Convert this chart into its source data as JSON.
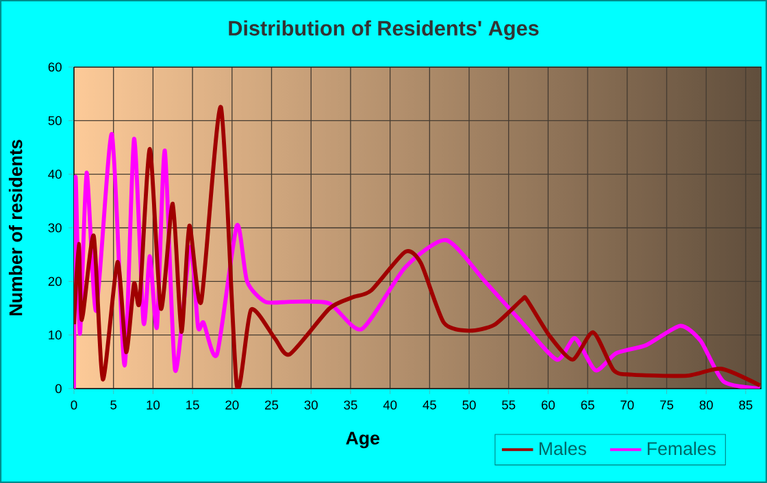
{
  "chart_data": {
    "type": "line",
    "title": "Distribution of Residents' Ages",
    "xlabel": "Age",
    "ylabel": "Number of residents",
    "xlim": [
      0,
      87
    ],
    "ylim": [
      0,
      60
    ],
    "xticks": [
      0,
      5,
      10,
      15,
      20,
      25,
      30,
      35,
      40,
      45,
      50,
      55,
      60,
      65,
      70,
      75,
      80,
      85
    ],
    "yticks": [
      0,
      10,
      20,
      30,
      40,
      50,
      60
    ],
    "grid": true,
    "legend": "bottom right",
    "marker": "none",
    "line_style": "solid",
    "series": [
      {
        "name": "Males",
        "color": "#a00000",
        "x": [
          0,
          0.6,
          1.0,
          2.5,
          3.65,
          5.5,
          6.6,
          7.6,
          8.3,
          9.6,
          11.0,
          12.5,
          13.6,
          14.6,
          16.1,
          18.6,
          20.6,
          22.4,
          25.4,
          27.3,
          32.3,
          35.2,
          37.6,
          41.9,
          43.9,
          46.8,
          50.0,
          53.2,
          56.7,
          57.3,
          60.2,
          63.1,
          65.7,
          68.3,
          70.6,
          77.6,
          81.9,
          86.8
        ],
        "values": [
          12,
          27,
          12.8,
          28.5,
          1.7,
          23.6,
          6.8,
          19.6,
          16.2,
          44.7,
          14.9,
          34.5,
          10.6,
          30.4,
          16.2,
          52.5,
          0.6,
          14.7,
          9.4,
          6.4,
          14.9,
          17,
          18.3,
          25.5,
          23.4,
          12.3,
          10.8,
          11.9,
          16.6,
          16.6,
          9.8,
          5.4,
          10.5,
          3.4,
          2.6,
          2.4,
          3.7,
          0.6
        ]
      },
      {
        "name": "Females",
        "color": "#ff00ff",
        "x": [
          0,
          0.2,
          0.75,
          1.6,
          2.8,
          4.8,
          6.4,
          7.6,
          8.8,
          9.6,
          10.5,
          11.5,
          12.8,
          14.7,
          15.7,
          16.4,
          18.1,
          20.6,
          21.9,
          24.2,
          27.5,
          32.3,
          36.4,
          41.9,
          47.1,
          52.0,
          56.7,
          61.1,
          63.4,
          66.0,
          68.6,
          72.4,
          76.7,
          79.3,
          82.2,
          86.8
        ],
        "values": [
          0,
          39.5,
          10.2,
          40.3,
          14.5,
          47.5,
          4.3,
          46.6,
          12.3,
          24.7,
          11.5,
          44.4,
          3.4,
          26.4,
          11.5,
          12.3,
          6.4,
          30.4,
          20,
          16.2,
          16.2,
          15.9,
          11.1,
          22.6,
          27.7,
          20,
          12.3,
          5.4,
          9.4,
          3.4,
          6.6,
          8.1,
          11.7,
          8.9,
          1.3,
          0
        ]
      }
    ]
  }
}
